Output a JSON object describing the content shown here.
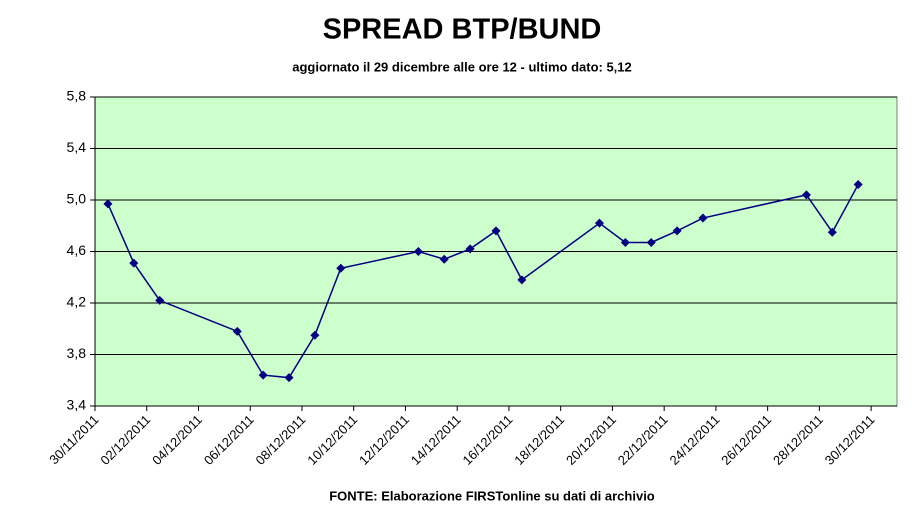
{
  "chart_data": {
    "type": "line",
    "title": "SPREAD BTP/BUND",
    "subtitle": "aggiornato il 29 dicembre alle ore 12 - ultimo dato: 5,12",
    "source": "FONTE: Elaborazione FIRSTonline su dati di archivio",
    "x": [
      "2011-11-30",
      "2011-12-01",
      "2011-12-02",
      "2011-12-05",
      "2011-12-06",
      "2011-12-07",
      "2011-12-08",
      "2011-12-09",
      "2011-12-12",
      "2011-12-13",
      "2011-12-14",
      "2011-12-15",
      "2011-12-16",
      "2011-12-19",
      "2011-12-20",
      "2011-12-21",
      "2011-12-22",
      "2011-12-23",
      "2011-12-27",
      "2011-12-28",
      "2011-12-29"
    ],
    "series": [
      {
        "name": "Spread",
        "color": "#000080",
        "values": [
          4.97,
          4.51,
          4.22,
          3.98,
          3.64,
          3.62,
          3.95,
          4.47,
          4.6,
          4.54,
          4.62,
          4.76,
          4.38,
          4.82,
          4.67,
          4.67,
          4.76,
          4.86,
          5.04,
          4.75,
          5.12
        ]
      }
    ],
    "xlim": [
      "2011-11-30",
      "2011-12-30"
    ],
    "xticks": [
      {
        "value": "2011-11-30",
        "label": "30/11/2011"
      },
      {
        "value": "2011-12-02",
        "label": "02/12/2011"
      },
      {
        "value": "2011-12-04",
        "label": "04/12/2011"
      },
      {
        "value": "2011-12-06",
        "label": "06/12/2011"
      },
      {
        "value": "2011-12-08",
        "label": "08/12/2011"
      },
      {
        "value": "2011-12-10",
        "label": "10/12/2011"
      },
      {
        "value": "2011-12-12",
        "label": "12/12/2011"
      },
      {
        "value": "2011-12-14",
        "label": "14/12/2011"
      },
      {
        "value": "2011-12-16",
        "label": "16/12/2011"
      },
      {
        "value": "2011-12-18",
        "label": "18/12/2011"
      },
      {
        "value": "2011-12-20",
        "label": "20/12/2011"
      },
      {
        "value": "2011-12-22",
        "label": "22/12/2011"
      },
      {
        "value": "2011-12-24",
        "label": "24/12/2011"
      },
      {
        "value": "2011-12-26",
        "label": "26/12/2011"
      },
      {
        "value": "2011-12-28",
        "label": "28/12/2011"
      },
      {
        "value": "2011-12-30",
        "label": "30/12/2011"
      }
    ],
    "ylim": [
      3.4,
      5.8
    ],
    "yticks": [
      {
        "value": 3.4,
        "label": "3,4"
      },
      {
        "value": 3.8,
        "label": "3,8"
      },
      {
        "value": 4.2,
        "label": "4,2"
      },
      {
        "value": 4.6,
        "label": "4,6"
      },
      {
        "value": 5.0,
        "label": "5,0"
      },
      {
        "value": 5.4,
        "label": "5,4"
      },
      {
        "value": 5.8,
        "label": "5,8"
      }
    ],
    "grid": true,
    "background": "#ccffcc"
  }
}
